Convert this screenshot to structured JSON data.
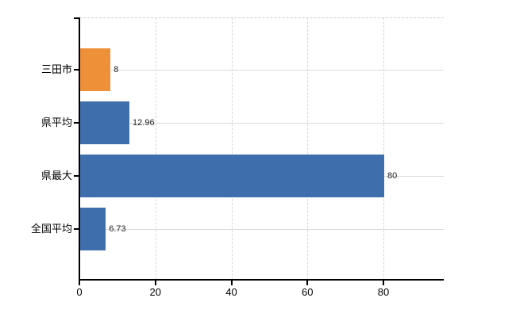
{
  "chart_data": {
    "type": "bar",
    "orientation": "horizontal",
    "title": "",
    "xlabel": "",
    "ylabel": "",
    "categories": [
      "三田市",
      "県平均",
      "県最大",
      "全国平均"
    ],
    "values": [
      8,
      12.96,
      80,
      6.73
    ],
    "value_labels": [
      "8",
      "12.96",
      "80",
      "6.73"
    ],
    "bar_colors": [
      "#ee9038",
      "#3e6eac",
      "#3e6eac",
      "#3e6eac"
    ],
    "x_ticks": [
      0,
      20,
      40,
      60,
      80
    ],
    "x_tick_labels": [
      "0",
      "20",
      "40",
      "60",
      "80"
    ],
    "xlim": [
      0,
      96
    ],
    "grid": {
      "horizontal_lines": "solid at each category center",
      "vertical_lines": "dashed at each x tick",
      "top_border": "dashed"
    },
    "legend": "none",
    "colors": {
      "accent_orange": "#ee9038",
      "accent_blue": "#3e6eac",
      "grid_solid": "#d9ddd9",
      "grid_dashed": "#d7d7d7",
      "axis": "#000000",
      "text": "#000000",
      "background": "#ffffff"
    }
  }
}
